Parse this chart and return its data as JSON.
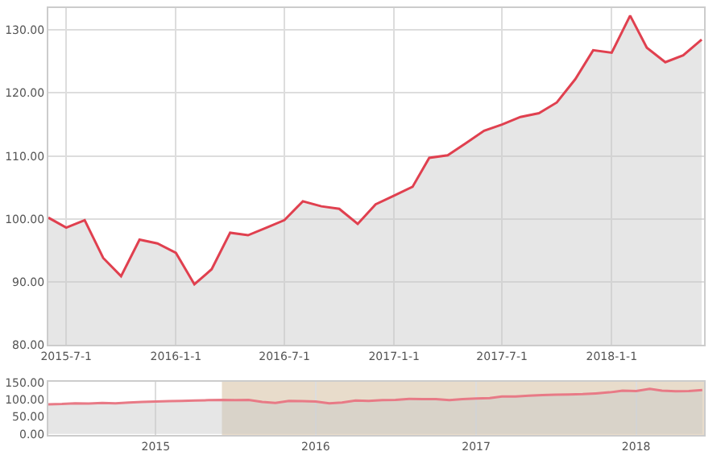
{
  "chart_data": [
    {
      "type": "area",
      "x": [
        "2015-06-01",
        "2015-07-01",
        "2015-08-01",
        "2015-09-01",
        "2015-10-01",
        "2015-11-01",
        "2015-12-01",
        "2016-01-01",
        "2016-02-01",
        "2016-03-01",
        "2016-04-01",
        "2016-05-01",
        "2016-06-01",
        "2016-07-01",
        "2016-08-01",
        "2016-09-01",
        "2016-10-01",
        "2016-11-01",
        "2016-12-01",
        "2017-01-01",
        "2017-02-01",
        "2017-03-01",
        "2017-04-01",
        "2017-05-01",
        "2017-06-01",
        "2017-07-01",
        "2017-08-01",
        "2017-09-01",
        "2017-10-01",
        "2017-11-01",
        "2017-12-01",
        "2018-01-01",
        "2018-02-01",
        "2018-03-01",
        "2018-04-01",
        "2018-05-01",
        "2018-06-01"
      ],
      "series": [
        {
          "color": "#e0404f",
          "values": [
            100.2,
            98.6,
            99.8,
            93.8,
            90.9,
            96.7,
            96.1,
            94.6,
            89.6,
            92.0,
            97.8,
            97.4,
            98.6,
            99.8,
            102.8,
            102.0,
            101.6,
            99.2,
            102.3,
            103.7,
            105.1,
            109.7,
            110.1,
            112.0,
            114.0,
            115.0,
            116.2,
            116.8,
            118.5,
            122.2,
            126.8,
            126.4,
            132.3,
            127.2,
            124.9,
            126.0,
            128.5
          ]
        }
      ],
      "xlim": [
        "2015-06-01",
        "2018-06-05"
      ],
      "xticks": [
        {
          "value": "2015-07-01",
          "label": "2015-7-1"
        },
        {
          "value": "2016-01-01",
          "label": "2016-1-1"
        },
        {
          "value": "2016-07-01",
          "label": "2016-7-1"
        },
        {
          "value": "2017-01-01",
          "label": "2017-1-1"
        },
        {
          "value": "2017-07-01",
          "label": "2017-7-1"
        },
        {
          "value": "2018-01-01",
          "label": "2018-1-1"
        }
      ],
      "ylim": [
        80,
        133.5
      ],
      "yticks": [
        {
          "value": 80,
          "label": "80.00"
        },
        {
          "value": 90,
          "label": "90.00"
        },
        {
          "value": 100,
          "label": "100.00"
        },
        {
          "value": 110,
          "label": "110.00"
        },
        {
          "value": 120,
          "label": "120.00"
        },
        {
          "value": 130,
          "label": "130.00"
        }
      ],
      "grid": true,
      "legend": false,
      "marker": "none",
      "line_style": "solid"
    },
    {
      "type": "area",
      "x": [
        "2014-05-01",
        "2014-06-01",
        "2014-07-01",
        "2014-08-01",
        "2014-09-01",
        "2014-10-01",
        "2014-11-01",
        "2014-12-01",
        "2015-01-01",
        "2015-02-01",
        "2015-03-01",
        "2015-04-01",
        "2015-05-01",
        "2015-06-01",
        "2015-07-01",
        "2015-08-01",
        "2015-09-01",
        "2015-10-01",
        "2015-11-01",
        "2015-12-01",
        "2016-01-01",
        "2016-02-01",
        "2016-03-01",
        "2016-04-01",
        "2016-05-01",
        "2016-06-01",
        "2016-07-01",
        "2016-08-01",
        "2016-09-01",
        "2016-10-01",
        "2016-11-01",
        "2016-12-01",
        "2017-01-01",
        "2017-02-01",
        "2017-03-01",
        "2017-04-01",
        "2017-05-01",
        "2017-06-01",
        "2017-07-01",
        "2017-08-01",
        "2017-09-01",
        "2017-10-01",
        "2017-11-01",
        "2017-12-01",
        "2018-01-01",
        "2018-02-01",
        "2018-03-01",
        "2018-04-01",
        "2018-05-01",
        "2018-06-01"
      ],
      "series": [
        {
          "color": "#e87a86",
          "values": [
            87,
            88,
            90,
            89,
            91,
            90,
            92,
            94,
            95,
            96,
            97,
            98,
            99,
            100,
            99,
            100,
            94,
            91,
            97,
            96,
            95,
            90,
            92,
            98,
            97,
            99,
            100,
            103,
            102,
            102,
            99,
            102,
            104,
            105,
            110,
            110,
            112,
            114,
            115,
            116,
            117,
            119,
            122,
            127,
            126,
            132,
            127,
            125,
            126,
            129
          ]
        }
      ],
      "xlim": [
        "2014-05-01",
        "2018-06-05"
      ],
      "xticks": [
        {
          "value": "2015-01-01",
          "label": "2015"
        },
        {
          "value": "2016-01-01",
          "label": "2016"
        },
        {
          "value": "2017-01-01",
          "label": "2017"
        },
        {
          "value": "2018-01-01",
          "label": "2018"
        }
      ],
      "ylim": [
        -3,
        153
      ],
      "yticks": [
        {
          "value": 0,
          "label": "0.00"
        },
        {
          "value": 50,
          "label": "50.00"
        },
        {
          "value": 100,
          "label": "100.00"
        },
        {
          "value": 150,
          "label": "150.00"
        }
      ],
      "bands": [
        {
          "axis": "x",
          "from": "2015-06-01",
          "to": "2018-06-05",
          "color": "#e8dccb"
        }
      ],
      "grid": "x",
      "legend": false,
      "marker": "none",
      "line_style": "solid"
    }
  ]
}
